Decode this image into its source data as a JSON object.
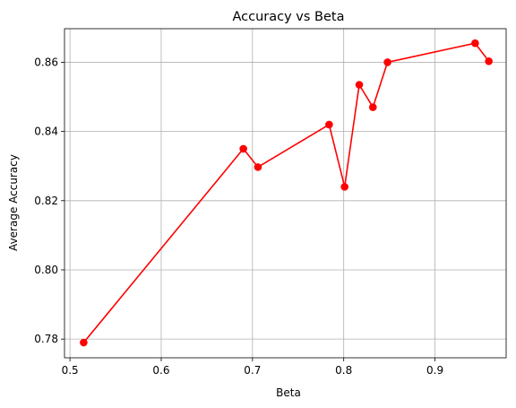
{
  "chart_data": {
    "type": "line",
    "title": "Accuracy vs Beta",
    "xlabel": "Beta",
    "ylabel": "Average Accuracy",
    "xlim": [
      0.494,
      0.978
    ],
    "ylim": [
      0.7746,
      0.8697
    ],
    "xticks": [
      0.5,
      0.6,
      0.7,
      0.8,
      0.9
    ],
    "xtick_labels": [
      "0.5",
      "0.6",
      "0.7",
      "0.8",
      "0.9"
    ],
    "yticks": [
      0.78,
      0.8,
      0.82,
      0.84,
      0.86
    ],
    "ytick_labels": [
      "0.78",
      "0.80",
      "0.82",
      "0.84",
      "0.86"
    ],
    "grid": true,
    "series": [
      {
        "color": "#ff0000",
        "marker": "circle",
        "x": [
          0.515,
          0.69,
          0.706,
          0.784,
          0.801,
          0.817,
          0.832,
          0.848,
          0.944,
          0.959
        ],
        "y": [
          0.779,
          0.835,
          0.8297,
          0.842,
          0.824,
          0.8535,
          0.847,
          0.86,
          0.8655,
          0.8603
        ]
      }
    ]
  }
}
